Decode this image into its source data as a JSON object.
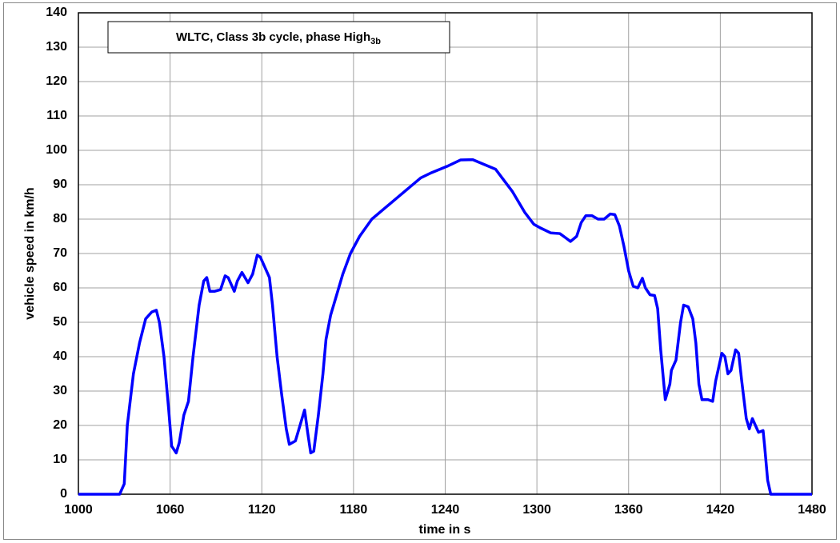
{
  "chart_data": {
    "type": "line",
    "title": "WLTC, Class 3b cycle, phase High",
    "title_subscript": "3b",
    "x_label": "time in s",
    "y_label": "vehicle speed in km/h",
    "color": "#0000ff",
    "grid": true,
    "xlim": [
      1000,
      1480
    ],
    "xticks": [
      1000,
      1060,
      1120,
      1180,
      1240,
      1300,
      1360,
      1420,
      1480
    ],
    "ylim": [
      0,
      140
    ],
    "yticks": [
      0,
      10,
      20,
      30,
      40,
      50,
      60,
      70,
      80,
      90,
      100,
      110,
      120,
      130,
      140
    ],
    "x": [
      1000,
      1027,
      1030,
      1032,
      1036,
      1040,
      1044,
      1048,
      1051,
      1053,
      1056,
      1059,
      1061,
      1064,
      1066,
      1069,
      1072,
      1075,
      1079,
      1082,
      1084,
      1086,
      1089,
      1093,
      1096,
      1098,
      1102,
      1104,
      1107,
      1111,
      1114,
      1117,
      1119,
      1122,
      1125,
      1127,
      1130,
      1133,
      1136,
      1138,
      1142,
      1145,
      1148,
      1150,
      1152,
      1154,
      1157,
      1160,
      1162,
      1165,
      1169,
      1173,
      1178,
      1184,
      1192,
      1200,
      1208,
      1216,
      1224,
      1231,
      1242,
      1250,
      1258,
      1265,
      1273,
      1284,
      1292,
      1298,
      1302,
      1309,
      1315,
      1319,
      1322,
      1326,
      1329,
      1332,
      1336,
      1340,
      1344,
      1348,
      1351,
      1354,
      1357,
      1360,
      1363,
      1366,
      1369,
      1371,
      1374,
      1377,
      1379,
      1381,
      1384,
      1387,
      1388,
      1391,
      1394,
      1396,
      1399,
      1402,
      1404,
      1406,
      1408,
      1412,
      1415,
      1417,
      1421,
      1423,
      1425,
      1427,
      1430,
      1432,
      1434,
      1437,
      1439,
      1441,
      1443,
      1445,
      1448,
      1449,
      1451,
      1453,
      1480
    ],
    "values": [
      0,
      0,
      3,
      20,
      35,
      44,
      51,
      53,
      53.5,
      50,
      40,
      25,
      14,
      12,
      15,
      23,
      27,
      40,
      55,
      62,
      63,
      59,
      59,
      59.5,
      63.5,
      63,
      59,
      62,
      64.5,
      61.5,
      64,
      69.5,
      69,
      66,
      63,
      55,
      40,
      29,
      19,
      14.5,
      15.5,
      20,
      24.5,
      18,
      12,
      12.5,
      23,
      35,
      45,
      52,
      58,
      64,
      70,
      75,
      80,
      83,
      86,
      89,
      92,
      93.5,
      95.5,
      97.2,
      97.3,
      96,
      94.5,
      88,
      82,
      78.5,
      77.5,
      76,
      75.8,
      74.5,
      73.5,
      75,
      79,
      81,
      81,
      80,
      80,
      81.5,
      81.3,
      78,
      72,
      65,
      60.5,
      60,
      62.8,
      60,
      58,
      57.8,
      54,
      42,
      27.5,
      32,
      36,
      39,
      50,
      55,
      54.5,
      51,
      44,
      32,
      27.5,
      27.5,
      27,
      33,
      41,
      40,
      35,
      36,
      42,
      41,
      33,
      22,
      19,
      22,
      20,
      18,
      18.5,
      14,
      4,
      0,
      0
    ]
  }
}
